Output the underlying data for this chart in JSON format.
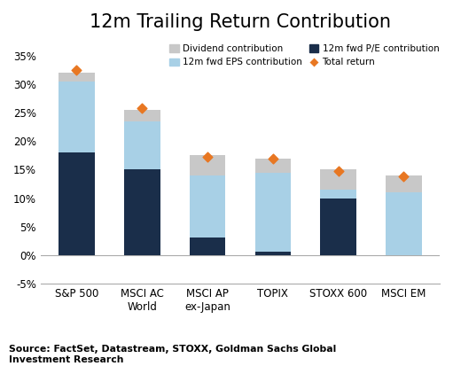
{
  "title": "12m Trailing Return Contribution",
  "categories": [
    "S&P 500",
    "MSCI AC\nWorld",
    "MSCI AP\nex-Japan",
    "TOPIX",
    "STOXX 600",
    "MSCI EM"
  ],
  "pe_contribution": [
    18.0,
    15.0,
    3.0,
    0.5,
    10.0,
    0.0
  ],
  "eps_contribution": [
    12.5,
    8.5,
    11.0,
    14.0,
    1.5,
    11.0
  ],
  "dividend_contribution": [
    1.5,
    2.0,
    3.5,
    2.5,
    3.5,
    3.0
  ],
  "total_return": [
    32.5,
    25.8,
    17.2,
    17.0,
    14.8,
    13.8
  ],
  "color_pe": "#1a2e4a",
  "color_eps": "#a8d0e6",
  "color_div": "#c8c8c8",
  "color_total": "#e87722",
  "ylim_min": -5,
  "ylim_max": 37,
  "yticks": [
    -5,
    0,
    5,
    10,
    15,
    20,
    25,
    30,
    35
  ],
  "ytick_labels": [
    "-5%",
    "0%",
    "5%",
    "10%",
    "15%",
    "20%",
    "25%",
    "30%",
    "35%"
  ],
  "source_text": "Source: FactSet, Datastream, STOXX, Goldman Sachs Global\nInvestment Research",
  "legend_row1": [
    {
      "label": "Dividend contribution",
      "color": "#c8c8c8",
      "type": "patch"
    },
    {
      "label": "12m fwd EPS contribution",
      "color": "#a8d0e6",
      "type": "patch"
    }
  ],
  "legend_row2": [
    {
      "label": "12m fwd P/E contribution",
      "color": "#1a2e4a",
      "type": "patch"
    },
    {
      "label": "Total return",
      "color": "#e87722",
      "type": "marker"
    }
  ],
  "bar_width": 0.55,
  "figsize": [
    5.11,
    4.13
  ],
  "dpi": 100
}
